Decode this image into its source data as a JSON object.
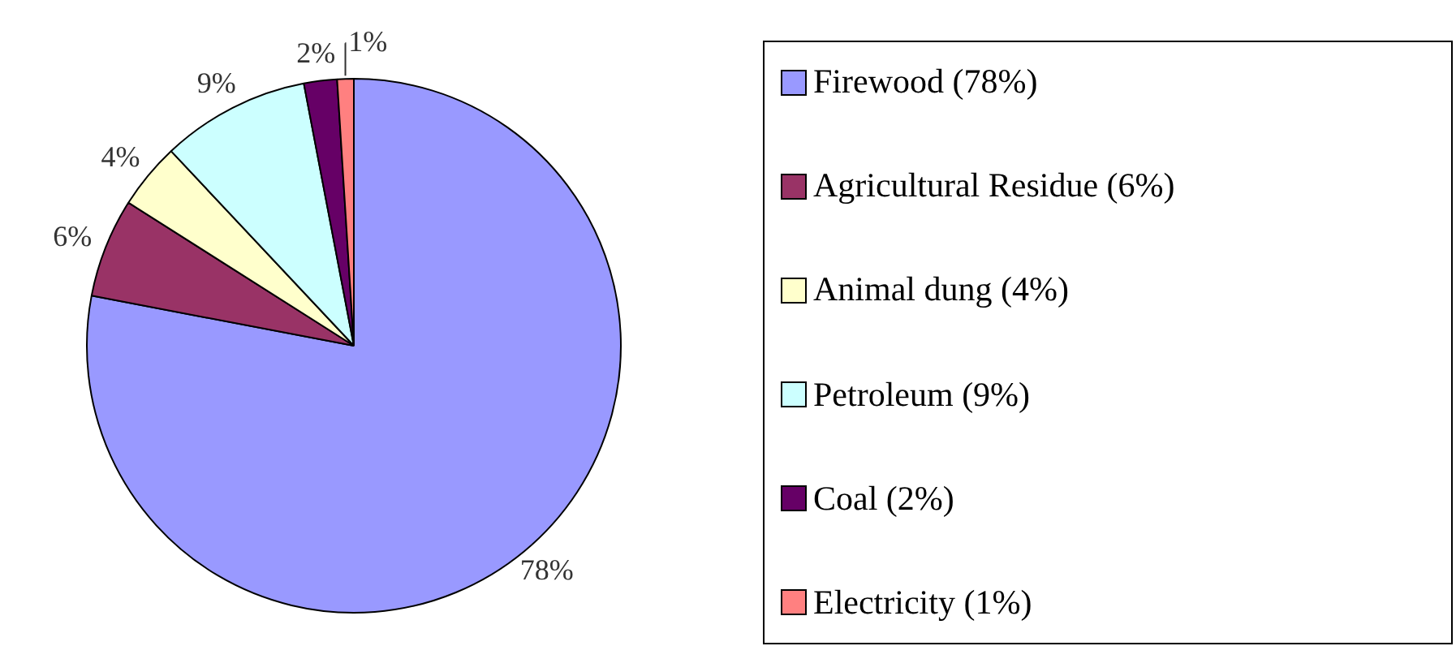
{
  "chart_data": {
    "type": "pie",
    "categories": [
      "Firewood (78%)",
      "Agricultural Residue (6%)",
      "Animal dung (4%)",
      "Petroleum (9%)",
      "Coal (2%)",
      "Electricity (1%)"
    ],
    "values": [
      78,
      6,
      4,
      9,
      2,
      1
    ],
    "value_labels": [
      "78%",
      "6%",
      "4%",
      "9%",
      "2%",
      "1%"
    ],
    "colors": [
      "#9999ff",
      "#993366",
      "#ffffcc",
      "#ccffff",
      "#660066",
      "#ff8080"
    ],
    "legend": "right"
  }
}
